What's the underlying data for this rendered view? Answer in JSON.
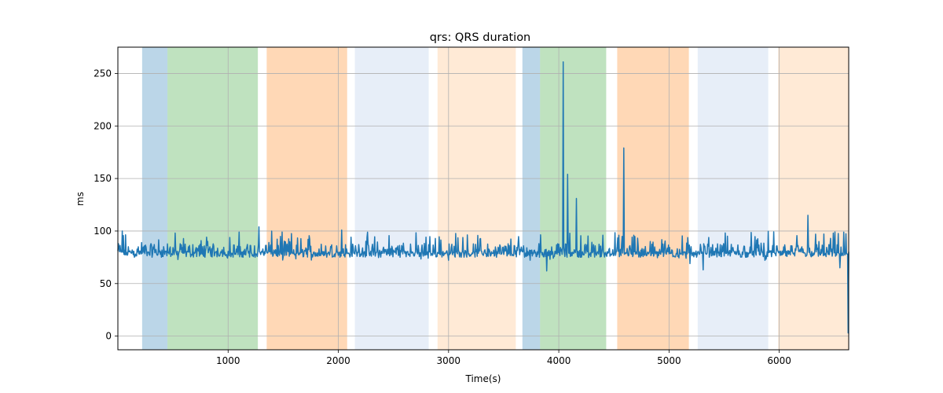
{
  "chart_data": {
    "type": "line",
    "title": "qrs: QRS duration",
    "xlabel": "Time(s)",
    "ylabel": "ms",
    "xlim": [
      0,
      6630
    ],
    "ylim": [
      -13,
      275
    ],
    "xticks": [
      1000,
      2000,
      3000,
      4000,
      5000,
      6000
    ],
    "yticks": [
      0,
      50,
      100,
      150,
      200,
      250
    ],
    "grid": true,
    "line_color": "#1f77b4",
    "bands": [
      {
        "x0": 220,
        "x1": 450,
        "color": "#1f77b4",
        "opacity": 0.3
      },
      {
        "x0": 450,
        "x1": 1270,
        "color": "#2ca02c",
        "opacity": 0.3
      },
      {
        "x0": 1350,
        "x1": 2080,
        "color": "#ff7f0e",
        "opacity": 0.3
      },
      {
        "x0": 2150,
        "x1": 2820,
        "color": "#aec7e8",
        "opacity": 0.3
      },
      {
        "x0": 2900,
        "x1": 3610,
        "color": "#ffbb78",
        "opacity": 0.3
      },
      {
        "x0": 3670,
        "x1": 3830,
        "color": "#1f77b4",
        "opacity": 0.3
      },
      {
        "x0": 3830,
        "x1": 4430,
        "color": "#2ca02c",
        "opacity": 0.3
      },
      {
        "x0": 4530,
        "x1": 5180,
        "color": "#ff7f0e",
        "opacity": 0.3
      },
      {
        "x0": 5260,
        "x1": 5900,
        "color": "#aec7e8",
        "opacity": 0.3
      },
      {
        "x0": 5990,
        "x1": 6630,
        "color": "#ffbb78",
        "opacity": 0.3
      }
    ],
    "series": [
      {
        "baseline": 78,
        "noise_range": [
          72,
          100
        ],
        "spikes": [
          {
            "x": 40,
            "y": 100
          },
          {
            "x": 1280,
            "y": 104
          },
          {
            "x": 2030,
            "y": 101
          },
          {
            "x": 3820,
            "y": 88
          },
          {
            "x": 3890,
            "y": 62
          },
          {
            "x": 4040,
            "y": 261
          },
          {
            "x": 4080,
            "y": 154
          },
          {
            "x": 4160,
            "y": 131
          },
          {
            "x": 4590,
            "y": 179
          },
          {
            "x": 5190,
            "y": 69
          },
          {
            "x": 5310,
            "y": 63
          },
          {
            "x": 6260,
            "y": 115
          },
          {
            "x": 6550,
            "y": 65
          },
          {
            "x": 6625,
            "y": 3
          }
        ]
      }
    ]
  }
}
